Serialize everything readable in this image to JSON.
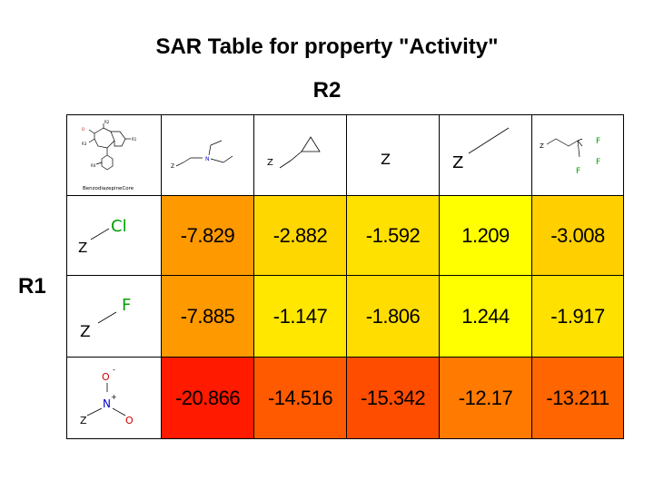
{
  "title": "SAR Table for property \"Activity\"",
  "col_group_label": "R2",
  "row_group_label": "R1",
  "core": {
    "caption": "BenzodiazepineCore",
    "labels": {
      "r2": "R2",
      "r3": "R3",
      "r1": "R1",
      "r4": "R4",
      "o": "O"
    }
  },
  "columns": [
    {
      "id": "diethylaminoethyl",
      "z": "Z",
      "n": "N"
    },
    {
      "id": "cyclopropylmethyl",
      "z": "Z"
    },
    {
      "id": "hydrogen",
      "z": "Z"
    },
    {
      "id": "methyl",
      "z": "Z"
    },
    {
      "id": "trifluoroethyl",
      "z": "Z",
      "f": "F"
    }
  ],
  "rows": [
    {
      "id": "chloro",
      "z": "Z",
      "atom": "Cl"
    },
    {
      "id": "fluoro",
      "z": "Z",
      "atom": "F"
    },
    {
      "id": "nitro",
      "z": "Z",
      "n": "N",
      "o": "O",
      "plus": "+",
      "minus": "-"
    }
  ],
  "chart_data": {
    "type": "heatmap",
    "row_labels": [
      "Cl",
      "F",
      "NO2"
    ],
    "col_labels": [
      "CH2CH2N(Et)2",
      "CH2-cyclopropyl",
      "H",
      "CH3",
      "CH2CF3"
    ],
    "values": [
      [
        "-7.829",
        "-2.882",
        "-1.592",
        "1.209",
        "-3.008"
      ],
      [
        "-7.885",
        "-1.147",
        "-1.806",
        "1.244",
        "-1.917"
      ],
      [
        "-20.866",
        "-14.516",
        "-15.342",
        "-12.17",
        "-13.211"
      ]
    ],
    "colors": [
      [
        "#ff9900",
        "#ffd700",
        "#ffe100",
        "#ffff00",
        "#ffcf00"
      ],
      [
        "#ff9900",
        "#ffe700",
        "#ffdd00",
        "#ffff00",
        "#ffe100"
      ],
      [
        "#ff1a00",
        "#ff5a00",
        "#ff4d00",
        "#ff7a00",
        "#ff6500"
      ]
    ],
    "color_scale": [
      "#ff0000",
      "#ff8000",
      "#ffff00"
    ]
  }
}
